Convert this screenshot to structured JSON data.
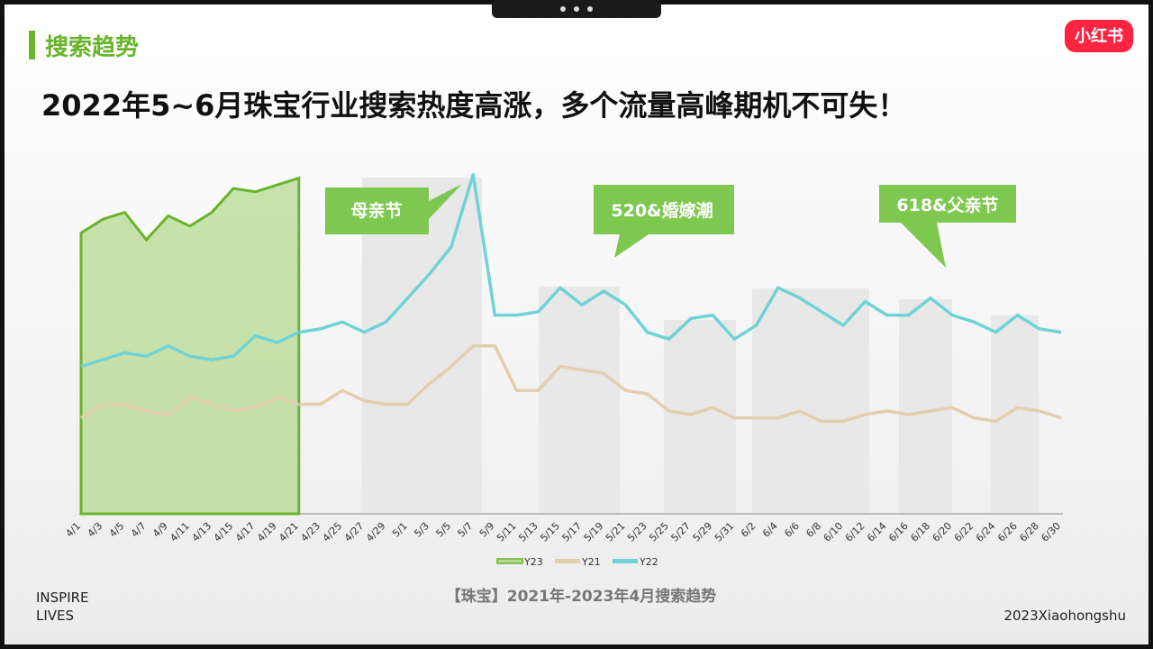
{
  "chart_data": {
    "type": "line",
    "brand": "小红书",
    "section": "搜索趋势",
    "title": "2022年5~6月珠宝行业搜索热度高涨，多个流量高峰期机不可失！",
    "caption": "【珠宝】2021年-2023年4月搜索趋势",
    "footer_left": [
      "INSPIRE",
      "LIVES"
    ],
    "footer_right": "2023Xiaohongshu",
    "annotations": [
      "母亲节",
      "520&婚嫁潮",
      "618&父亲节"
    ],
    "categories": [
      "4/1",
      "4/3",
      "4/5",
      "4/7",
      "4/9",
      "4/11",
      "4/13",
      "4/15",
      "4/17",
      "4/19",
      "4/21",
      "4/23",
      "4/25",
      "4/27",
      "4/29",
      "5/1",
      "5/3",
      "5/5",
      "5/7",
      "5/9",
      "5/11",
      "5/13",
      "5/15",
      "5/17",
      "5/19",
      "5/21",
      "5/23",
      "5/25",
      "5/27",
      "5/29",
      "5/31",
      "6/2",
      "6/4",
      "6/6",
      "6/8",
      "6/10",
      "6/12",
      "6/14",
      "6/16",
      "6/18",
      "6/20",
      "6/22",
      "6/24",
      "6/26",
      "6/28",
      "6/30"
    ],
    "ylim": [
      0,
      100
    ],
    "series": [
      {
        "name": "Y23",
        "color": "#6ab42d",
        "fill": "#b5d98f",
        "values": [
          82,
          86,
          88,
          80,
          87,
          84,
          88,
          95,
          94,
          96,
          98,
          null,
          null,
          null,
          null,
          null,
          null,
          null,
          null,
          null,
          null,
          null,
          null,
          null,
          null,
          null,
          null,
          null,
          null,
          null,
          null,
          null,
          null,
          null,
          null,
          null,
          null,
          null,
          null,
          null,
          null,
          null,
          null,
          null,
          null,
          null
        ]
      },
      {
        "name": "Y21",
        "color": "#e2cfae",
        "values": [
          28,
          32,
          32,
          30,
          29,
          34,
          32,
          30,
          31,
          34,
          32,
          32,
          36,
          33,
          32,
          32,
          38,
          43,
          49,
          49,
          36,
          36,
          43,
          42,
          41,
          36,
          35,
          30,
          29,
          31,
          28,
          28,
          28,
          30,
          27,
          27,
          29,
          30,
          29,
          30,
          31,
          28,
          27,
          31,
          30,
          28
        ]
      },
      {
        "name": "Y22",
        "color": "#6fd3d6",
        "values": [
          43,
          45,
          47,
          46,
          49,
          46,
          45,
          46,
          52,
          50,
          53,
          54,
          56,
          53,
          56,
          63,
          70,
          78,
          99,
          58,
          58,
          59,
          66,
          61,
          65,
          61,
          53,
          51,
          57,
          58,
          51,
          55,
          66,
          63,
          59,
          55,
          62,
          58,
          58,
          63,
          58,
          56,
          53,
          58,
          54,
          53
        ]
      }
    ]
  }
}
